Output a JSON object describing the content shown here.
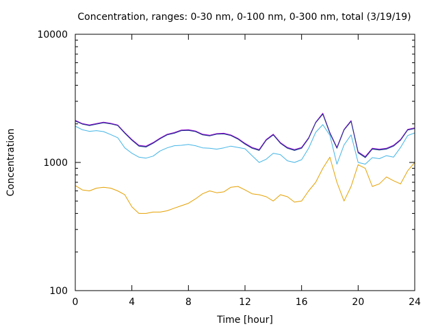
{
  "chart_data": {
    "type": "line",
    "title": "Concentration, ranges: 0-30 nm, 0-100 nm, 0-300 nm, total (3/19/19)",
    "xlabel": "Time [hour]",
    "ylabel": "Concentration",
    "xlim": [
      0,
      24
    ],
    "ylim": [
      100,
      10000
    ],
    "yscale": "log",
    "grid": false,
    "legend": "none",
    "x_ticks": [
      "0",
      "4",
      "8",
      "12",
      "16",
      "20",
      "24"
    ],
    "y_ticks": [
      "100",
      "1000",
      "10000"
    ],
    "x": [
      0,
      0.5,
      1,
      1.5,
      2,
      2.5,
      3,
      3.5,
      4,
      4.5,
      5,
      5.5,
      6,
      6.5,
      7,
      7.5,
      8,
      8.5,
      9,
      9.5,
      10,
      10.5,
      11,
      11.5,
      12,
      12.5,
      13,
      13.5,
      14,
      14.5,
      15,
      15.5,
      16,
      16.5,
      17,
      17.5,
      18,
      18.5,
      19,
      19.5,
      20,
      20.5,
      21,
      21.5,
      22,
      22.5,
      23,
      23.5,
      24
    ],
    "series": [
      {
        "color": "#e5a000",
        "values": [
          660,
          610,
          600,
          630,
          640,
          630,
          600,
          560,
          450,
          400,
          400,
          410,
          410,
          420,
          440,
          460,
          480,
          520,
          570,
          600,
          580,
          590,
          640,
          650,
          610,
          570,
          560,
          540,
          500,
          560,
          540,
          490,
          500,
          600,
          700,
          900,
          1100,
          700,
          500,
          650,
          960,
          900,
          650,
          680,
          770,
          720,
          680,
          860,
          1000
        ]
      },
      {
        "color": "#42b4e6",
        "values": [
          1920,
          1800,
          1750,
          1770,
          1740,
          1650,
          1560,
          1300,
          1180,
          1100,
          1080,
          1120,
          1230,
          1300,
          1350,
          1360,
          1380,
          1350,
          1300,
          1290,
          1270,
          1300,
          1340,
          1310,
          1280,
          1130,
          1000,
          1060,
          1180,
          1150,
          1030,
          1000,
          1050,
          1290,
          1720,
          1970,
          1630,
          970,
          1370,
          1640,
          1000,
          970,
          1090,
          1070,
          1130,
          1100,
          1310,
          1620,
          1700
        ]
      },
      {
        "color": "#009e73",
        "values": [
          2120,
          2000,
          1950,
          2000,
          2050,
          2010,
          1950,
          1700,
          1500,
          1350,
          1330,
          1420,
          1540,
          1650,
          1700,
          1780,
          1790,
          1750,
          1650,
          1620,
          1670,
          1680,
          1630,
          1530,
          1400,
          1300,
          1250,
          1500,
          1650,
          1420,
          1300,
          1250,
          1300,
          1550,
          2050,
          2400,
          1700,
          1300,
          1800,
          2100,
          1200,
          1100,
          1280,
          1260,
          1280,
          1350,
          1500,
          1800,
          1850
        ]
      },
      {
        "color": "#9400d3",
        "values": [
          2130,
          2010,
          1960,
          2010,
          2060,
          2020,
          1960,
          1710,
          1510,
          1360,
          1340,
          1430,
          1550,
          1660,
          1710,
          1790,
          1800,
          1760,
          1660,
          1630,
          1680,
          1690,
          1640,
          1540,
          1410,
          1310,
          1260,
          1510,
          1660,
          1430,
          1310,
          1260,
          1310,
          1560,
          2060,
          2420,
          1710,
          1310,
          1810,
          2120,
          1210,
          1110,
          1290,
          1270,
          1290,
          1360,
          1510,
          1810,
          1860
        ]
      },
      {
        "color": "#1e3a8a",
        "values": [
          2100,
          1990,
          1940,
          1990,
          2040,
          2000,
          1940,
          1690,
          1490,
          1340,
          1320,
          1410,
          1530,
          1640,
          1690,
          1770,
          1780,
          1740,
          1640,
          1610,
          1660,
          1670,
          1620,
          1520,
          1390,
          1290,
          1240,
          1490,
          1640,
          1410,
          1290,
          1240,
          1290,
          1540,
          2040,
          2380,
          1690,
          1290,
          1790,
          2090,
          1190,
          1090,
          1270,
          1250,
          1270,
          1340,
          1490,
          1790,
          1840
        ]
      }
    ]
  }
}
